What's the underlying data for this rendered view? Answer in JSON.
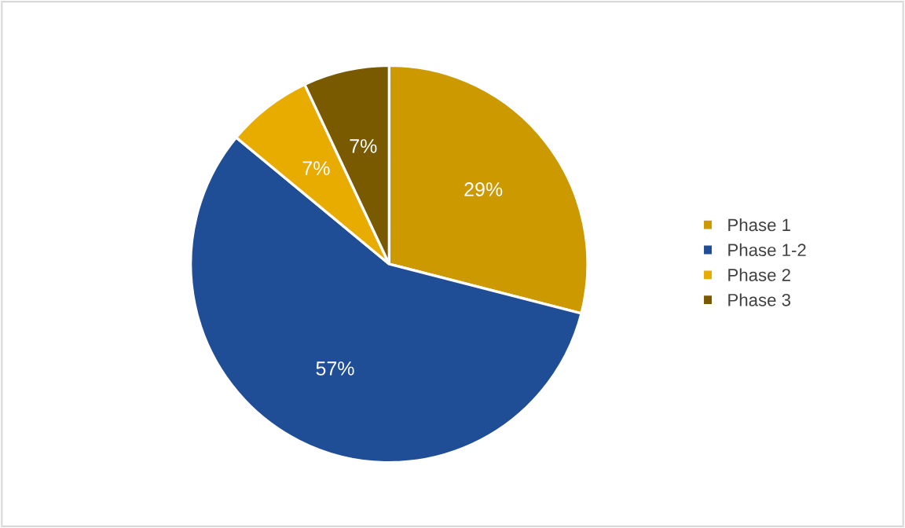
{
  "chart_data": {
    "type": "pie",
    "categories": [
      "Phase 1",
      "Phase 1-2",
      "Phase 2",
      "Phase 3"
    ],
    "values": [
      29,
      57,
      7,
      7
    ],
    "colors": [
      "#cc9900",
      "#1f4e96",
      "#e8ab00",
      "#7a5a00"
    ],
    "value_labels": [
      "29%",
      "57%",
      "7%",
      "7%"
    ],
    "legend": "right"
  }
}
